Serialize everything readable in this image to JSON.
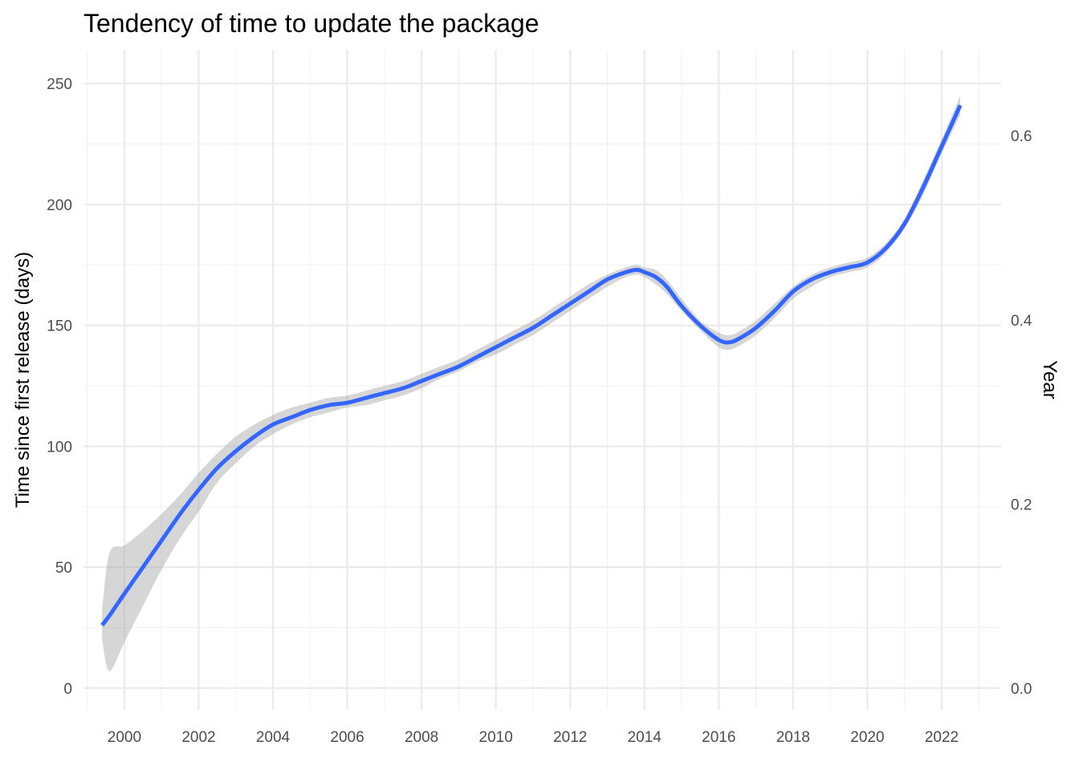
{
  "chart_data": {
    "type": "line",
    "title": "Tendency of time to update the package",
    "xlabel": "",
    "ylabel": "Time since first release (days)",
    "y2label": "Year",
    "xlim": [
      1998.9,
      2023.6
    ],
    "ylim": [
      -9,
      264
    ],
    "y2lim": [
      -0.0236,
      0.6934
    ],
    "x_ticks": [
      "2000",
      "2002",
      "2004",
      "2006",
      "2008",
      "2010",
      "2012",
      "2014",
      "2016",
      "2018",
      "2020",
      "2022"
    ],
    "y_ticks": [
      "0",
      "50",
      "100",
      "150",
      "200",
      "250"
    ],
    "y2_ticks": [
      "0.0",
      "0.2",
      "0.4",
      "0.6"
    ],
    "grid": true,
    "legend": "none",
    "colors": {
      "line": "#3366FF",
      "ribbon": "#999999",
      "grid_major": "#ebebeb",
      "grid_minor": "#f2f2f2"
    },
    "series": [
      {
        "x": [
          1999.4,
          1999.6,
          2000.0,
          2000.5,
          2001.0,
          2001.5,
          2002.0,
          2002.5,
          2003.0,
          2003.5,
          2004.0,
          2004.5,
          2005.0,
          2005.5,
          2006.0,
          2006.5,
          2007.0,
          2007.5,
          2008.0,
          2008.5,
          2009.0,
          2009.5,
          2010.0,
          2010.5,
          2011.0,
          2011.5,
          2012.0,
          2012.5,
          2013.0,
          2013.5,
          2013.8,
          2014.0,
          2014.3,
          2014.6,
          2015.0,
          2015.5,
          2016.0,
          2016.3,
          2016.6,
          2017.0,
          2017.5,
          2018.0,
          2018.5,
          2019.0,
          2019.5,
          2020.0,
          2020.5,
          2021.0,
          2021.5,
          2022.0,
          2022.5
        ],
        "y": [
          26,
          30,
          39,
          50,
          61,
          72,
          82,
          91,
          98,
          104,
          109,
          112,
          115,
          117,
          118,
          120,
          122,
          124,
          127,
          130,
          133,
          137,
          141,
          145,
          149,
          154,
          159,
          164,
          169,
          172,
          173,
          172,
          170,
          166,
          158,
          150,
          144,
          143,
          145,
          149,
          156,
          164,
          169,
          172,
          174,
          176,
          182,
          192,
          207,
          224,
          241
        ],
        "lower": [
          20,
          7,
          19,
          34,
          49,
          62,
          73,
          85,
          93,
          100,
          105,
          109,
          112,
          114,
          116,
          117,
          119,
          121,
          124,
          128,
          131,
          135,
          138,
          142,
          146,
          151,
          156,
          161,
          166,
          170,
          171,
          170,
          167,
          163,
          156,
          148,
          141,
          140,
          142,
          146,
          153,
          161,
          166,
          170,
          172,
          174,
          180,
          190,
          204,
          221,
          237
        ],
        "upper": [
          32,
          56,
          59,
          65,
          72,
          80,
          89,
          97,
          104,
          109,
          113,
          116,
          118,
          120,
          121,
          123,
          125,
          127,
          130,
          133,
          136,
          140,
          144,
          148,
          152,
          157,
          162,
          167,
          171,
          174,
          175,
          174,
          173,
          169,
          161,
          152,
          147,
          146,
          148,
          152,
          159,
          166,
          171,
          174,
          176,
          178,
          184,
          194,
          210,
          227,
          245
        ]
      }
    ]
  }
}
